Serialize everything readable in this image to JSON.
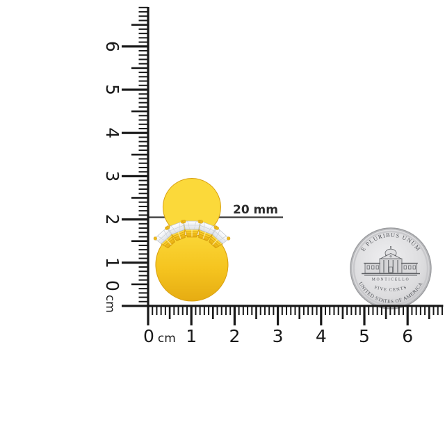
{
  "annotation": {
    "label": "20 mm"
  },
  "rulers": {
    "unit": "cm",
    "horizontal": {
      "tick_labels": [
        "0",
        "1",
        "2",
        "3",
        "4",
        "5",
        "6"
      ]
    },
    "vertical": {
      "tick_labels": [
        "0",
        "1",
        "2",
        "3",
        "4",
        "5",
        "6"
      ]
    }
  },
  "coin": {
    "top_text": "E PLURIBUS UNUM",
    "building_label": "MONTICELLO",
    "denomination": "FIVE CENTS",
    "bottom_text": "UNITED STATES OF AMERICA"
  },
  "colors": {
    "background": "#ffffff",
    "ink": "#191919",
    "annotation_ink": "#3a3a3a",
    "gold": "#f6c71f",
    "gold_dark": "#d89f0e",
    "gold_light": "#ffe14f",
    "diamond": "#f0f2f5",
    "diamond_line": "#b9bfc7",
    "coin_fill": "#dcdcde",
    "coin_edge": "#9b9c9f",
    "coin_text": "#54565b"
  }
}
